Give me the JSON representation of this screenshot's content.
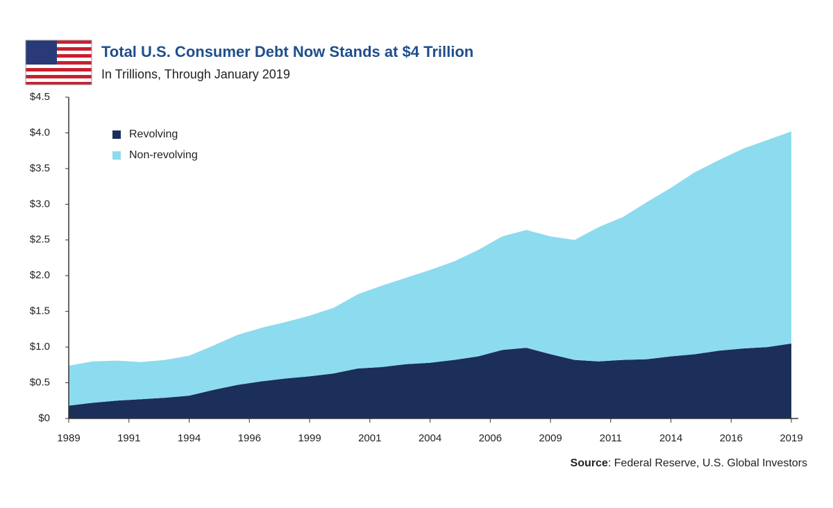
{
  "chart_data": {
    "type": "stacked-area",
    "title": "Total U.S. Consumer Debt Now Stands at $4 Trillion",
    "subtitle": "In Trillions, Through January 2019",
    "source_label": "Source",
    "source_text": ": Federal Reserve, U.S. Global Investors",
    "legend": "upper left",
    "x": [
      1989,
      1990,
      1991,
      1992,
      1993,
      1994,
      1995,
      1996,
      1997,
      1998,
      1999,
      2000,
      2001,
      2002,
      2003,
      2004,
      2005,
      2006,
      2007,
      2008,
      2009,
      2010,
      2011,
      2012,
      2013,
      2014,
      2015,
      2016,
      2017,
      2018,
      2019
    ],
    "series": [
      {
        "name": "Revolving",
        "color": "#1b2f5a",
        "values": [
          0.18,
          0.22,
          0.25,
          0.27,
          0.29,
          0.32,
          0.4,
          0.47,
          0.52,
          0.56,
          0.59,
          0.63,
          0.7,
          0.72,
          0.76,
          0.78,
          0.82,
          0.87,
          0.96,
          0.99,
          0.9,
          0.82,
          0.8,
          0.82,
          0.83,
          0.87,
          0.9,
          0.95,
          0.98,
          1.0,
          1.05
        ]
      },
      {
        "name": "Non-revolving",
        "color": "#8ddbee",
        "values": [
          0.56,
          0.58,
          0.56,
          0.52,
          0.53,
          0.56,
          0.62,
          0.7,
          0.75,
          0.79,
          0.85,
          0.92,
          1.04,
          1.14,
          1.21,
          1.3,
          1.38,
          1.49,
          1.59,
          1.65,
          1.65,
          1.68,
          1.88,
          2.0,
          2.2,
          2.36,
          2.55,
          2.67,
          2.8,
          2.9,
          2.97
        ]
      }
    ],
    "xlim": [
      1989,
      2019
    ],
    "xticks": [
      1989,
      {
        "value": 1991.5,
        "label": "1991"
      },
      1994,
      {
        "value": 1996.5,
        "label": "1996"
      },
      1999,
      {
        "value": 2001.5,
        "label": "2001"
      },
      2004,
      {
        "value": 2006.5,
        "label": "2006"
      },
      2009,
      {
        "value": 2011.5,
        "label": "2011"
      },
      2014,
      {
        "value": 2016.5,
        "label": "2016"
      },
      2019
    ],
    "ylim": [
      0,
      4.5
    ],
    "yticks": [
      {
        "value": 0,
        "label": "$0"
      },
      {
        "value": 0.5,
        "label": "$0.5"
      },
      {
        "value": 1,
        "label": "$1.0"
      },
      {
        "value": 1.5,
        "label": "$1.5"
      },
      {
        "value": 2,
        "label": "$2.0"
      },
      {
        "value": 2.5,
        "label": "$2.5"
      },
      {
        "value": 3,
        "label": "$3.0"
      },
      {
        "value": 3.5,
        "label": "$3.5"
      },
      {
        "value": 4,
        "label": "$4.0"
      },
      {
        "value": 4.5,
        "label": "$4.5"
      }
    ]
  }
}
